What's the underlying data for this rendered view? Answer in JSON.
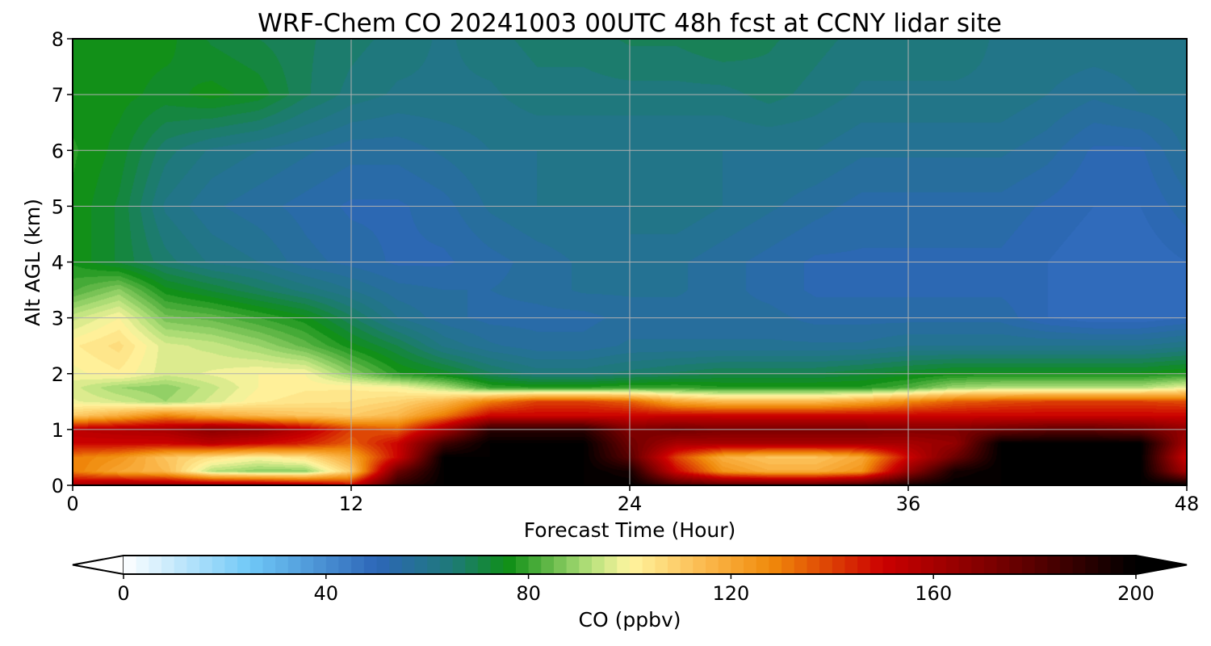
{
  "chart_data": {
    "type": "heatmap",
    "title": "WRF-Chem CO  20241003 00UTC 48h fcst at CCNY lidar site",
    "xlabel": "Forecast Time (Hour)",
    "ylabel": "Alt AGL (km)",
    "xlim": [
      0,
      48
    ],
    "ylim": [
      0,
      8
    ],
    "x_ticks": [
      0,
      12,
      24,
      36,
      48
    ],
    "y_ticks": [
      0,
      1,
      2,
      3,
      4,
      5,
      6,
      7,
      8
    ],
    "grid": true,
    "colorbar": {
      "label": "CO  (ppbv)",
      "min": 0,
      "max": 200,
      "ticks": [
        0,
        40,
        80,
        120,
        160,
        200
      ],
      "extend": "both",
      "placement": "bottom",
      "colors": [
        {
          "value": 0,
          "color": "#ffffff"
        },
        {
          "value": 25,
          "color": "#6fc8f7"
        },
        {
          "value": 50,
          "color": "#2d66b8"
        },
        {
          "value": 65,
          "color": "#1e7a78"
        },
        {
          "value": 76,
          "color": "#0f8f16"
        },
        {
          "value": 92,
          "color": "#b4e07a"
        },
        {
          "value": 100,
          "color": "#fff5a0"
        },
        {
          "value": 115,
          "color": "#fbb84c"
        },
        {
          "value": 128,
          "color": "#f08a0a"
        },
        {
          "value": 150,
          "color": "#cc0000"
        },
        {
          "value": 172,
          "color": "#7a0000"
        },
        {
          "value": 200,
          "color": "#000000"
        }
      ]
    },
    "hours": [
      0,
      2,
      4,
      6,
      8,
      10,
      12,
      14,
      16,
      18,
      20,
      22,
      24,
      26,
      28,
      30,
      32,
      34,
      36,
      38,
      40,
      42,
      44,
      46,
      48
    ],
    "altitudes_km": [
      0,
      0.25,
      0.5,
      0.75,
      1.0,
      1.25,
      1.5,
      1.75,
      2.0,
      2.5,
      3.0,
      3.5,
      4.0,
      5.0,
      6.0,
      7.0,
      8.0
    ],
    "co_ppbv": [
      [
        160,
        165,
        165,
        165,
        165,
        160,
        150,
        190,
        200,
        200,
        200,
        200,
        200,
        185,
        180,
        180,
        180,
        185,
        195,
        200,
        200,
        200,
        200,
        200,
        200
      ],
      [
        130,
        120,
        115,
        92,
        88,
        88,
        110,
        175,
        200,
        200,
        200,
        200,
        195,
        150,
        125,
        118,
        118,
        125,
        165,
        195,
        200,
        200,
        200,
        200,
        160
      ],
      [
        130,
        125,
        112,
        105,
        100,
        105,
        120,
        150,
        200,
        200,
        200,
        200,
        180,
        140,
        118,
        112,
        112,
        120,
        150,
        175,
        200,
        200,
        200,
        200,
        150
      ],
      [
        150,
        150,
        150,
        155,
        150,
        145,
        135,
        150,
        185,
        200,
        200,
        200,
        175,
        160,
        160,
        160,
        160,
        160,
        160,
        165,
        200,
        200,
        200,
        200,
        160
      ],
      [
        155,
        158,
        160,
        168,
        165,
        155,
        140,
        135,
        160,
        190,
        190,
        190,
        170,
        175,
        172,
        172,
        172,
        172,
        170,
        170,
        175,
        178,
        178,
        175,
        165
      ],
      [
        110,
        118,
        128,
        120,
        115,
        112,
        110,
        115,
        130,
        150,
        150,
        150,
        150,
        150,
        150,
        150,
        150,
        150,
        150,
        150,
        150,
        150,
        150,
        150,
        150
      ],
      [
        98,
        95,
        90,
        96,
        102,
        104,
        105,
        108,
        115,
        130,
        140,
        140,
        135,
        120,
        115,
        115,
        115,
        120,
        128,
        135,
        138,
        140,
        140,
        140,
        138
      ],
      [
        96,
        90,
        88,
        94,
        100,
        102,
        102,
        100,
        92,
        80,
        78,
        78,
        80,
        80,
        78,
        78,
        78,
        78,
        82,
        90,
        92,
        92,
        92,
        92,
        98
      ],
      [
        99,
        102,
        96,
        98,
        100,
        100,
        88,
        78,
        74,
        68,
        64,
        64,
        66,
        68,
        70,
        70,
        70,
        72,
        74,
        76,
        76,
        76,
        76,
        76,
        78
      ],
      [
        102,
        106,
        96,
        94,
        90,
        84,
        76,
        70,
        62,
        58,
        56,
        56,
        58,
        58,
        58,
        58,
        58,
        58,
        60,
        60,
        60,
        60,
        60,
        60,
        62
      ],
      [
        94,
        100,
        86,
        84,
        80,
        76,
        68,
        60,
        56,
        54,
        54,
        54,
        56,
        56,
        56,
        56,
        54,
        54,
        54,
        54,
        54,
        50,
        48,
        48,
        50
      ],
      [
        82,
        88,
        76,
        72,
        68,
        64,
        60,
        56,
        55,
        55,
        56,
        58,
        58,
        58,
        56,
        54,
        52,
        52,
        52,
        52,
        52,
        50,
        48,
        48,
        50
      ],
      [
        77,
        72,
        66,
        62,
        60,
        56,
        54,
        52,
        52,
        54,
        56,
        58,
        60,
        58,
        56,
        54,
        52,
        52,
        52,
        52,
        52,
        50,
        48,
        48,
        50
      ],
      [
        77,
        72,
        62,
        58,
        56,
        54,
        52,
        52,
        54,
        58,
        60,
        60,
        60,
        62,
        60,
        58,
        56,
        54,
        54,
        54,
        54,
        52,
        50,
        50,
        54
      ],
      [
        78,
        74,
        66,
        62,
        60,
        58,
        56,
        56,
        58,
        60,
        60,
        60,
        60,
        60,
        60,
        60,
        60,
        58,
        58,
        58,
        58,
        56,
        52,
        52,
        58
      ],
      [
        76,
        76,
        74,
        76,
        74,
        68,
        64,
        62,
        62,
        62,
        64,
        64,
        64,
        64,
        64,
        66,
        64,
        62,
        62,
        62,
        62,
        60,
        58,
        60,
        60
      ],
      [
        76,
        76,
        76,
        72,
        70,
        68,
        66,
        64,
        62,
        64,
        66,
        66,
        68,
        68,
        70,
        68,
        66,
        64,
        64,
        64,
        62,
        62,
        62,
        62,
        62
      ]
    ]
  }
}
